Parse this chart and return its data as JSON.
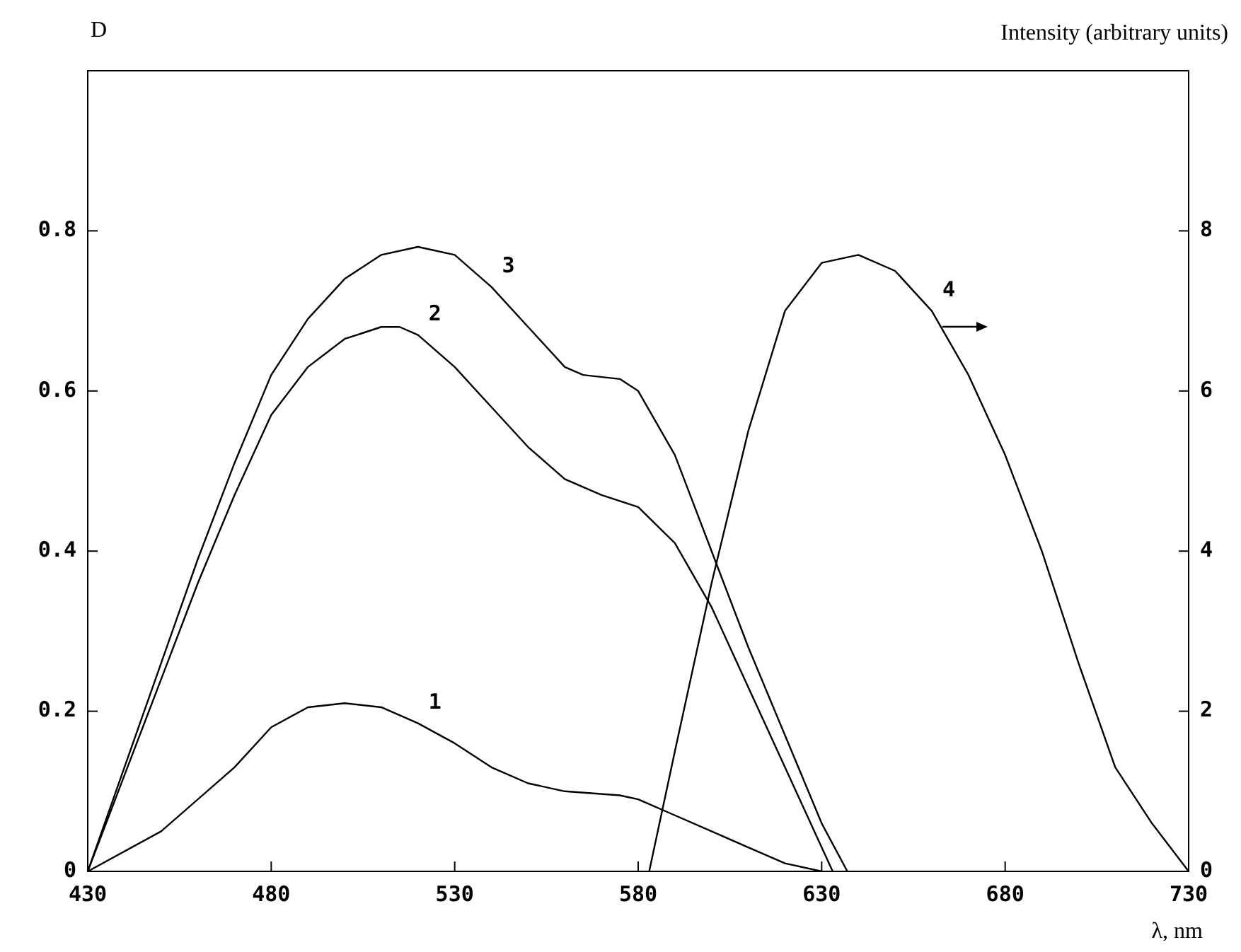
{
  "chart_data": {
    "type": "line",
    "xlabel": "λ, nm",
    "ylabel": "D",
    "y2label": "Intensity (arbitrary units)",
    "xlim": [
      430,
      730
    ],
    "xticks": [
      430,
      480,
      530,
      580,
      630,
      680,
      730
    ],
    "ylim": [
      0,
      1
    ],
    "yticks": [
      0,
      0.2,
      0.4,
      0.6,
      0.8
    ],
    "y2lim": [
      0,
      10
    ],
    "y2ticks": [
      0,
      2,
      4,
      6,
      8
    ],
    "grid": false,
    "legend": false,
    "marker": "none",
    "line_style": "solid",
    "series": [
      {
        "name": "1",
        "color": "#000000",
        "x": [
          430,
          450,
          470,
          480,
          490,
          500,
          510,
          520,
          530,
          540,
          550,
          560,
          575,
          580,
          590,
          600,
          610,
          620,
          630
        ],
        "values": [
          0,
          0.05,
          0.13,
          0.18,
          0.205,
          0.21,
          0.205,
          0.185,
          0.16,
          0.13,
          0.11,
          0.1,
          0.095,
          0.09,
          0.07,
          0.05,
          0.03,
          0.01,
          0
        ]
      },
      {
        "name": "2",
        "color": "#000000",
        "x": [
          430,
          440,
          450,
          460,
          470,
          480,
          490,
          500,
          510,
          515,
          520,
          530,
          540,
          550,
          560,
          570,
          580,
          590,
          600,
          610,
          620,
          630,
          633
        ],
        "values": [
          0,
          0.12,
          0.24,
          0.36,
          0.47,
          0.57,
          0.63,
          0.665,
          0.68,
          0.68,
          0.67,
          0.63,
          0.58,
          0.53,
          0.49,
          0.47,
          0.455,
          0.41,
          0.33,
          0.23,
          0.13,
          0.03,
          0
        ]
      },
      {
        "name": "3",
        "color": "#000000",
        "x": [
          430,
          440,
          450,
          460,
          470,
          480,
          490,
          500,
          510,
          520,
          530,
          540,
          550,
          560,
          565,
          575,
          580,
          590,
          600,
          610,
          620,
          630,
          637
        ],
        "values": [
          0,
          0.13,
          0.26,
          0.39,
          0.51,
          0.62,
          0.69,
          0.74,
          0.77,
          0.78,
          0.77,
          0.73,
          0.68,
          0.63,
          0.62,
          0.615,
          0.6,
          0.52,
          0.4,
          0.28,
          0.17,
          0.06,
          0
        ]
      },
      {
        "name": "4",
        "color": "#000000",
        "axis": "y2",
        "x": [
          583,
          590,
          600,
          610,
          620,
          630,
          640,
          650,
          660,
          670,
          680,
          690,
          700,
          710,
          720,
          730
        ],
        "values": [
          0,
          1.5,
          3.6,
          5.5,
          7.0,
          7.6,
          7.7,
          7.5,
          7.0,
          6.2,
          5.2,
          4.0,
          2.6,
          1.3,
          0.6,
          0
        ]
      }
    ]
  }
}
